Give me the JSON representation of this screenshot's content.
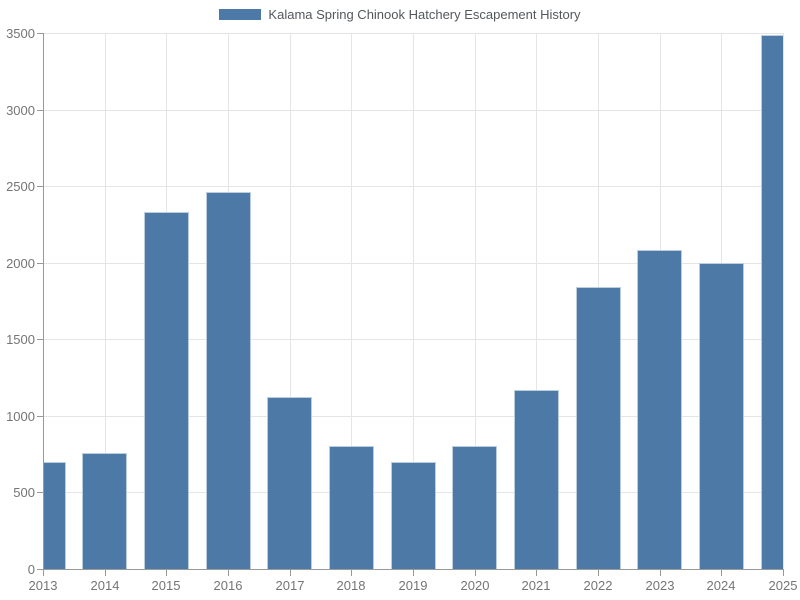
{
  "chart_data": {
    "type": "bar",
    "title": "Kalama Spring Chinook Hatchery Escapement History",
    "series_name": "Kalama Spring Chinook Hatchery Escapement History",
    "categories": [
      "2013",
      "2014",
      "2015",
      "2016",
      "2017",
      "2018",
      "2019",
      "2020",
      "2021",
      "2022",
      "2023",
      "2024",
      "2025"
    ],
    "values": [
      700,
      755,
      2330,
      2465,
      1125,
      805,
      700,
      805,
      1170,
      1840,
      2080,
      2000,
      3490
    ],
    "xlabel": "",
    "ylabel": "",
    "ylim": [
      0,
      3500
    ],
    "yticks": [
      0,
      500,
      1000,
      1500,
      2000,
      2500,
      3000,
      3500
    ],
    "grid": "both",
    "legend_position": "top-center",
    "bar_width_ratio": 0.73,
    "first_last_bars_clipped_at_plot_edges": true
  },
  "colors": {
    "bar_fill": "#4d79a7",
    "bar_edge": "#bccdde",
    "gridline": "#e5e5e5",
    "axis": "#999999",
    "tick_label": "#757575",
    "legend_text": "#54585c",
    "background": "#ffffff"
  }
}
